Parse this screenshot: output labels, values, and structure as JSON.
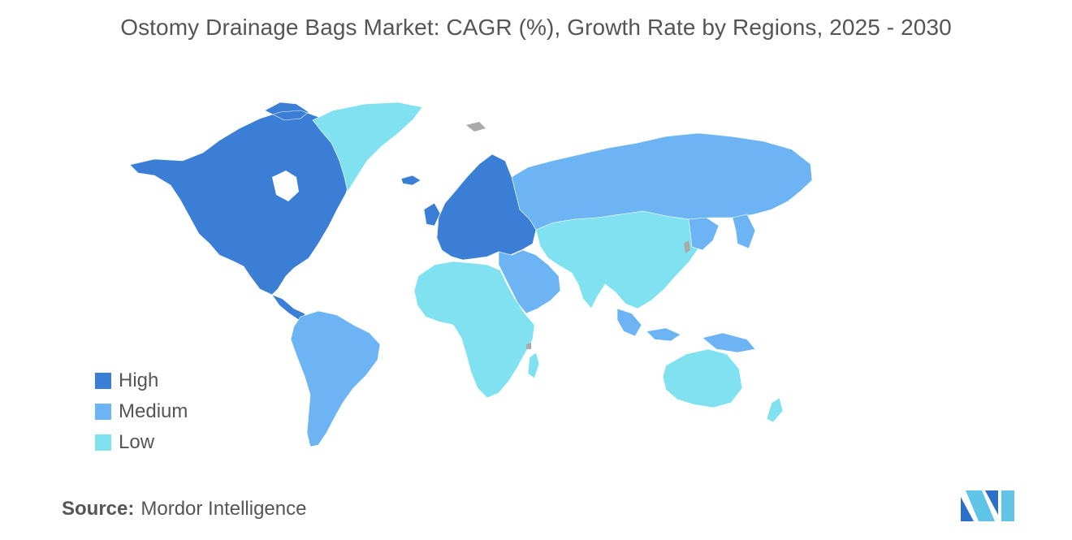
{
  "title": "Ostomy Drainage Bags Market: CAGR (%), Growth Rate by Regions, 2025 - 2030",
  "legend": [
    {
      "label": "High",
      "color": "#3a7fd5"
    },
    {
      "label": "Medium",
      "color": "#6cb4f4"
    },
    {
      "label": "Low",
      "color": "#80e2f0"
    }
  ],
  "no_data_color": "#aaaaaa",
  "source": {
    "label": "Source:",
    "value": "Mordor Intelligence"
  },
  "regions": [
    {
      "name": "North America",
      "level": "High"
    },
    {
      "name": "Europe",
      "level": "High"
    },
    {
      "name": "Asia-Pacific",
      "level": "Medium"
    },
    {
      "name": "South America",
      "level": "Medium"
    },
    {
      "name": "Middle East",
      "level": "Medium"
    },
    {
      "name": "Africa",
      "level": "Low"
    },
    {
      "name": "Greenland",
      "level": "Low"
    },
    {
      "name": "Asia (China, India, Central Asia)",
      "level": "Low"
    },
    {
      "name": "Australia & New Zealand",
      "level": "Low"
    }
  ]
}
